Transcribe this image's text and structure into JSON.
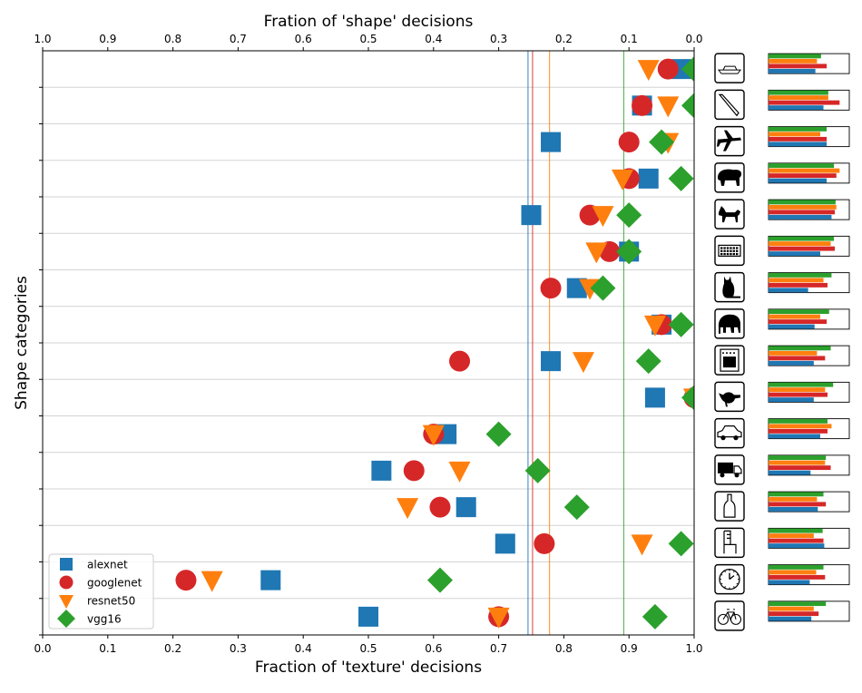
{
  "chart_data": {
    "type": "scatter",
    "title": "",
    "xlabel": "Fraction of 'texture' decisions",
    "top_xlabel": "Fration of 'shape' decisions",
    "ylabel": "Shape categories",
    "xlim": [
      0.0,
      1.0
    ],
    "x_ticks": [
      "0.0",
      "0.1",
      "0.2",
      "0.3",
      "0.4",
      "0.5",
      "0.6",
      "0.7",
      "0.8",
      "0.9",
      "1.0"
    ],
    "top_x_ticks": [
      "1.0",
      "0.9",
      "0.8",
      "0.7",
      "0.6",
      "0.5",
      "0.4",
      "0.3",
      "0.2",
      "0.1",
      "0.0"
    ],
    "grid": "horizontal",
    "legend_position": "lower-left",
    "categories": [
      "boat",
      "knife",
      "airplane",
      "bear",
      "dog",
      "keyboard",
      "cat",
      "elephant",
      "oven",
      "bird",
      "car",
      "truck",
      "bottle",
      "chair",
      "clock",
      "bicycle"
    ],
    "series": [
      {
        "name": "alexnet",
        "marker": "square",
        "color": "#1f77b4",
        "values": [
          0.98,
          0.92,
          0.78,
          0.93,
          0.75,
          0.9,
          0.82,
          0.95,
          0.78,
          0.94,
          0.62,
          0.52,
          0.65,
          0.71,
          0.35,
          0.5
        ]
      },
      {
        "name": "googlenet",
        "marker": "circle",
        "color": "#d62728",
        "values": [
          0.96,
          0.92,
          0.9,
          0.9,
          0.84,
          0.87,
          0.78,
          0.95,
          0.64,
          1.0,
          0.6,
          0.57,
          0.61,
          0.77,
          0.22,
          0.7
        ]
      },
      {
        "name": "resnet50",
        "marker": "triangle-down",
        "color": "#ff7f0e",
        "values": [
          0.93,
          0.96,
          0.96,
          0.89,
          0.86,
          0.85,
          0.84,
          0.94,
          0.83,
          1.0,
          0.6,
          0.64,
          0.56,
          0.92,
          0.26,
          0.7
        ]
      },
      {
        "name": "vgg16",
        "marker": "diamond",
        "color": "#2ca02c",
        "values": [
          1.0,
          1.0,
          0.95,
          0.98,
          0.9,
          0.9,
          0.86,
          0.98,
          0.93,
          1.0,
          0.7,
          0.76,
          0.82,
          0.98,
          0.61,
          0.94
        ]
      }
    ],
    "mean_lines": [
      {
        "series": "alexnet",
        "value": 0.745,
        "color": "#1f77b4"
      },
      {
        "series": "googlenet",
        "value": 0.752,
        "color": "#d62728"
      },
      {
        "series": "resnet50",
        "value": 0.778,
        "color": "#ff7f0e"
      },
      {
        "series": "vgg16",
        "value": 0.892,
        "color": "#2ca02c"
      }
    ],
    "icons": [
      "boat-icon",
      "knife-icon",
      "airplane-icon",
      "bear-icon",
      "dog-icon",
      "keyboard-icon",
      "cat-icon",
      "elephant-icon",
      "oven-icon",
      "bird-icon",
      "car-icon",
      "truck-icon",
      "bottle-icon",
      "chair-icon",
      "clock-icon",
      "bicycle-icon"
    ],
    "bar_panel": {
      "xlim": [
        0.0,
        1.0
      ],
      "series_order": [
        "vgg16",
        "resnet50",
        "googlenet",
        "alexnet"
      ],
      "values": [
        [
          0.65,
          0.6,
          0.72,
          0.58
        ],
        [
          0.74,
          0.74,
          0.88,
          0.68
        ],
        [
          0.72,
          0.64,
          0.72,
          0.72
        ],
        [
          0.81,
          0.88,
          0.84,
          0.72
        ],
        [
          0.83,
          0.84,
          0.82,
          0.78
        ],
        [
          0.81,
          0.77,
          0.82,
          0.64
        ],
        [
          0.78,
          0.68,
          0.73,
          0.49
        ],
        [
          0.75,
          0.64,
          0.72,
          0.57
        ],
        [
          0.77,
          0.6,
          0.7,
          0.56
        ],
        [
          0.8,
          0.7,
          0.73,
          0.56
        ],
        [
          0.73,
          0.78,
          0.73,
          0.64
        ],
        [
          0.71,
          0.7,
          0.77,
          0.52
        ],
        [
          0.68,
          0.6,
          0.71,
          0.61
        ],
        [
          0.67,
          0.56,
          0.68,
          0.69
        ],
        [
          0.68,
          0.59,
          0.7,
          0.51
        ],
        [
          0.71,
          0.56,
          0.62,
          0.53
        ]
      ]
    }
  }
}
